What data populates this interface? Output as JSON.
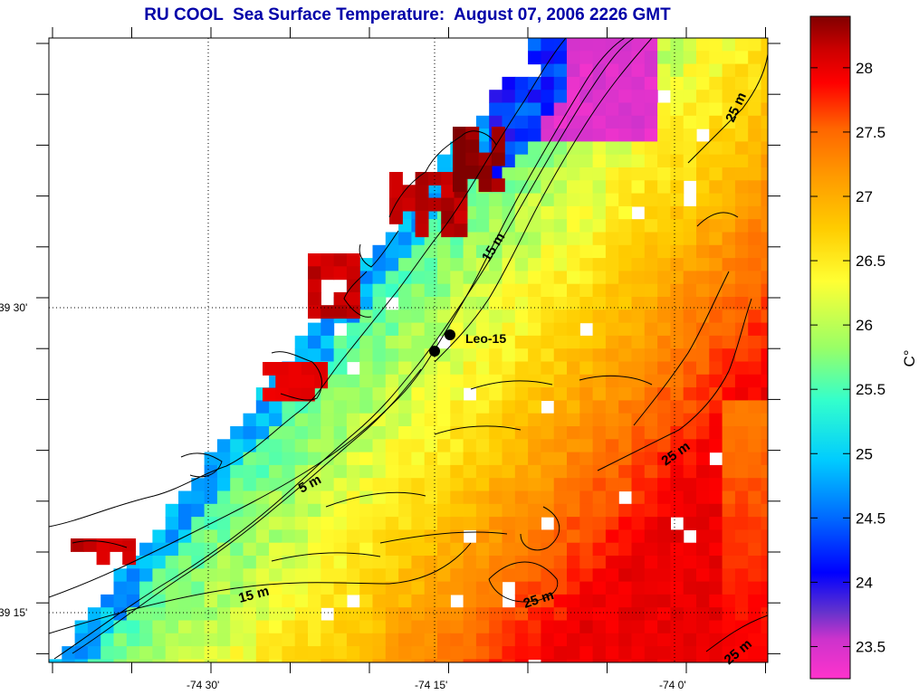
{
  "map": {
    "title": "RU COOL  Sea Surface Temperature:  August 07, 2006 2226 GMT",
    "lat_labels": [
      "39 30'",
      "39 15'"
    ],
    "lon_labels": [
      "-74 30'",
      "-74 15'",
      "-74 0'"
    ],
    "contour_labels": [
      "5 m",
      "15 m",
      "15 m",
      "25 m",
      "25 m",
      "25 m",
      "25 m"
    ],
    "station": {
      "label": "Leo-15"
    }
  },
  "colorbar": {
    "unit": "C°",
    "ticks": [
      "28",
      "27.5",
      "27",
      "26.5",
      "26",
      "25.5",
      "25",
      "24.5",
      "24",
      "23.5"
    ],
    "min": 23.25,
    "max": 28.4,
    "colors": [
      "#ff33cc",
      "#cc33cc",
      "#6633cc",
      "#0000ff",
      "#0066ff",
      "#00ccff",
      "#33ffcc",
      "#99ff66",
      "#ffff33",
      "#ffcc00",
      "#ff9900",
      "#ff6600",
      "#ff0000",
      "#cc0000",
      "#800000"
    ]
  }
}
